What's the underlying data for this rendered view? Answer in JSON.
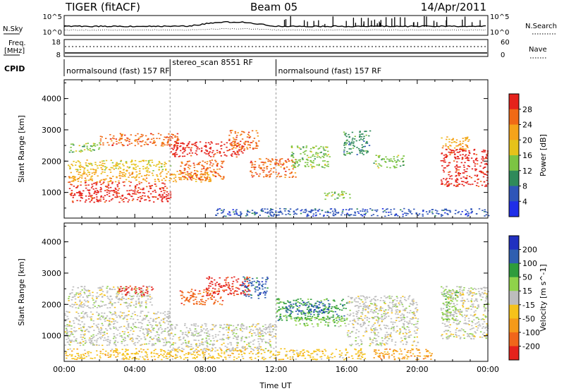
{
  "header": {
    "radar": "TIGER (fitACF)",
    "beam": "Beam 05",
    "date": "14/Apr/2011"
  },
  "strip_noise": {
    "left_label": "N.Sky",
    "right_label": "N.Search",
    "left_ticks": [
      "10^5",
      "10^0"
    ],
    "right_ticks": [
      "10^5",
      "10^0"
    ]
  },
  "strip_freq": {
    "left_label_1": "Freq.",
    "left_label_2": "[MHz]",
    "right_label": "Nave",
    "left_ticks": [
      "18",
      "8"
    ],
    "right_ticks": [
      "60",
      "0"
    ]
  },
  "cpid": {
    "label": "CPID",
    "segments": [
      {
        "name": "normalsound (fast) 157 RF",
        "start_h": 0,
        "end_h": 6
      },
      {
        "name": "stereo_scan 8551 RF",
        "start_h": 6,
        "end_h": 12
      },
      {
        "name": "normalsound (fast) 157 RF",
        "start_h": 12,
        "end_h": 24
      }
    ]
  },
  "panels": {
    "ylabel": "Slant Range [km]",
    "yticks": [
      "1000",
      "2000",
      "3000",
      "4000"
    ],
    "xlabel": "Time UT",
    "xticks": [
      "00:00",
      "04:00",
      "08:00",
      "12:00",
      "16:00",
      "20:00",
      "00:00"
    ]
  },
  "chart_data": [
    {
      "type": "heatmap",
      "name": "power",
      "x_range_hours": [
        0,
        24
      ],
      "y_range_km": [
        180,
        4600
      ],
      "colorbar_label": "Power [dB]",
      "colorbar_ticks": [
        "4",
        "8",
        "12",
        "16",
        "20",
        "24",
        "28"
      ],
      "colorbar_levels": [
        0,
        4,
        8,
        12,
        16,
        20,
        24,
        28,
        32
      ],
      "colorbar_colors": [
        "#1f2ee8",
        "#2f55b8",
        "#2f8a5a",
        "#7cc443",
        "#e6c21a",
        "#f5a319",
        "#f06a16",
        "#e5221c"
      ],
      "regions": [
        {
          "t": [
            0.2,
            6.0
          ],
          "r": [
            700,
            1350
          ],
          "level": 7
        },
        {
          "t": [
            0.2,
            8.5
          ],
          "r": [
            1350,
            1700
          ],
          "level": 5
        },
        {
          "t": [
            0.2,
            6.0
          ],
          "r": [
            1700,
            2050
          ],
          "level": 4
        },
        {
          "t": [
            0.2,
            2.0
          ],
          "r": [
            2300,
            2600
          ],
          "level": 3
        },
        {
          "t": [
            2.0,
            6.5
          ],
          "r": [
            2500,
            2900
          ],
          "level": 6
        },
        {
          "t": [
            6.0,
            10.2
          ],
          "r": [
            2150,
            2650
          ],
          "level": 7
        },
        {
          "t": [
            6.5,
            9.0
          ],
          "r": [
            1400,
            2050
          ],
          "level": 6
        },
        {
          "t": [
            9.3,
            11.0
          ],
          "r": [
            2400,
            3000
          ],
          "level": 6
        },
        {
          "t": [
            10.5,
            13.2
          ],
          "r": [
            1500,
            2100
          ],
          "level": 6
        },
        {
          "t": [
            12.8,
            15.0
          ],
          "r": [
            1800,
            2500
          ],
          "level": 3
        },
        {
          "t": [
            14.7,
            16.2
          ],
          "r": [
            800,
            1050
          ],
          "level": 3
        },
        {
          "t": [
            15.8,
            17.3
          ],
          "r": [
            2200,
            3000
          ],
          "level": 2
        },
        {
          "t": [
            17.5,
            19.2
          ],
          "r": [
            1800,
            2200
          ],
          "level": 3
        },
        {
          "t": [
            21.3,
            24.0
          ],
          "r": [
            1200,
            2400
          ],
          "level": 7
        },
        {
          "t": [
            21.3,
            23.0
          ],
          "r": [
            2400,
            2800
          ],
          "level": 5
        },
        {
          "t": [
            8.5,
            24.0
          ],
          "r": [
            250,
            500
          ],
          "level": 1
        }
      ]
    },
    {
      "type": "heatmap",
      "name": "velocity",
      "x_range_hours": [
        0,
        24
      ],
      "y_range_km": [
        180,
        4600
      ],
      "colorbar_label": "Velocity [m s^-1]",
      "colorbar_ticks": [
        "200",
        "100",
        "50",
        "15",
        "-15",
        "-50",
        "-100",
        "-200"
      ],
      "colorbar_levels": [
        250,
        200,
        100,
        50,
        15,
        -15,
        -50,
        -100,
        -200,
        -250
      ],
      "colorbar_colors": [
        "#2130c0",
        "#2f5fb0",
        "#2e9c3c",
        "#8fd24a",
        "#bdbdbd",
        "#f5c21a",
        "#f59a19",
        "#f0661a",
        "#e5221c"
      ],
      "regions": [
        {
          "t": [
            0.0,
            6.0
          ],
          "r": [
            700,
            1800
          ],
          "level": 4
        },
        {
          "t": [
            0.2,
            5.0
          ],
          "r": [
            1900,
            2600
          ],
          "level": 4
        },
        {
          "t": [
            3.0,
            5.0
          ],
          "r": [
            2300,
            2600
          ],
          "level": 8
        },
        {
          "t": [
            6.0,
            12.0
          ],
          "r": [
            500,
            1400
          ],
          "level": 4
        },
        {
          "t": [
            6.5,
            9.0
          ],
          "r": [
            2000,
            2500
          ],
          "level": 7
        },
        {
          "t": [
            8.0,
            10.5
          ],
          "r": [
            2300,
            2900
          ],
          "level": 8
        },
        {
          "t": [
            10.0,
            11.5
          ],
          "r": [
            2200,
            2900
          ],
          "level": 1
        },
        {
          "t": [
            12.0,
            16.0
          ],
          "r": [
            1500,
            2200
          ],
          "level": 2
        },
        {
          "t": [
            12.5,
            15.0
          ],
          "r": [
            1700,
            2100
          ],
          "level": 1
        },
        {
          "t": [
            13.0,
            16.0
          ],
          "r": [
            1300,
            1600
          ],
          "level": 3
        },
        {
          "t": [
            16.0,
            20.0
          ],
          "r": [
            700,
            2300
          ],
          "level": 4
        },
        {
          "t": [
            21.3,
            24.0
          ],
          "r": [
            900,
            2600
          ],
          "level": 4
        },
        {
          "t": [
            21.3,
            22.3
          ],
          "r": [
            1500,
            2500
          ],
          "level": 3
        },
        {
          "t": [
            17.5,
            21.0
          ],
          "r": [
            250,
            600
          ],
          "level": 6
        },
        {
          "t": [
            0.0,
            17.0
          ],
          "r": [
            250,
            600
          ],
          "level": 5
        }
      ]
    }
  ]
}
